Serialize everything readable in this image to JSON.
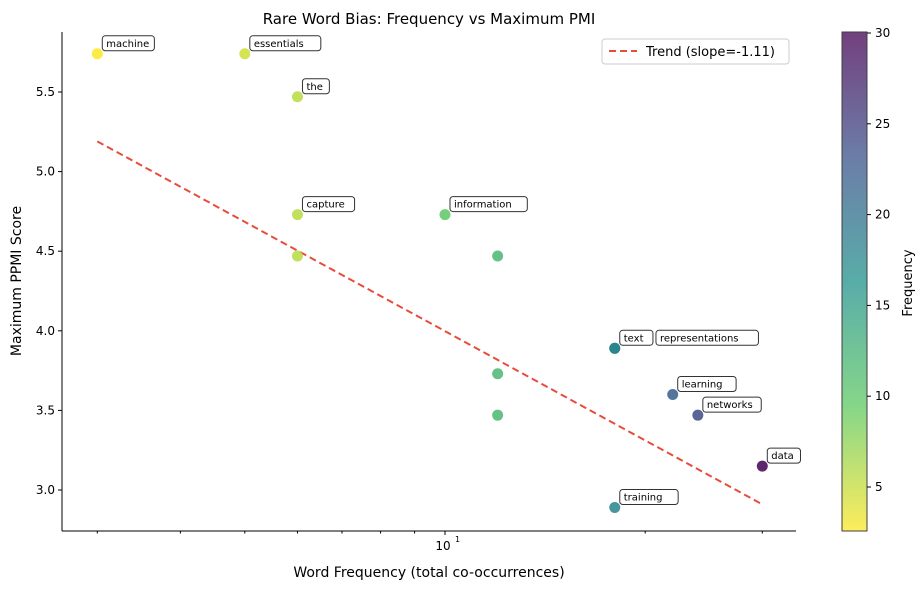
{
  "chart_data": {
    "type": "scatter",
    "title": "Rare Word Bias: Frequency vs Maximum PMI",
    "xlabel": "Word Frequency (total co-occurrences)",
    "ylabel": "Maximum PPMI Score",
    "xscale": "log",
    "xlim": [
      2.4,
      41
    ],
    "ylim": [
      2.75,
      5.88
    ],
    "x_ticks": [
      {
        "value": 10,
        "label": "10",
        "exp": "1"
      }
    ],
    "y_ticks": [
      3.0,
      3.5,
      4.0,
      4.5,
      5.0,
      5.5
    ],
    "y_tick_labels": [
      "3.0",
      "3.5",
      "4.0",
      "4.5",
      "5.0",
      "5.5"
    ],
    "grid": false,
    "points": [
      {
        "x": 3,
        "y": 5.74,
        "label": "machine"
      },
      {
        "x": 5,
        "y": 5.74,
        "label": "essentials"
      },
      {
        "x": 6,
        "y": 5.47,
        "label": "the"
      },
      {
        "x": 6,
        "y": 4.73,
        "label": "capture"
      },
      {
        "x": 6,
        "y": 4.47,
        "label": ""
      },
      {
        "x": 10,
        "y": 4.73,
        "label": "information"
      },
      {
        "x": 12,
        "y": 4.47,
        "label": ""
      },
      {
        "x": 12,
        "y": 3.73,
        "label": ""
      },
      {
        "x": 12,
        "y": 3.47,
        "label": ""
      },
      {
        "x": 18,
        "y": 3.89,
        "label": "representations"
      },
      {
        "x": 18,
        "y": 3.89,
        "label": "text"
      },
      {
        "x": 22,
        "y": 3.6,
        "label": "learning"
      },
      {
        "x": 24,
        "y": 3.47,
        "label": "networks"
      },
      {
        "x": 30,
        "y": 3.15,
        "label": "data"
      },
      {
        "x": 18,
        "y": 2.89,
        "label": "training"
      }
    ],
    "trend": {
      "name": "Trend (slope=-1.11)",
      "x": [
        3,
        30
      ],
      "y": [
        5.19,
        2.91
      ],
      "color": "#e74c3c"
    },
    "legend_placement": "top-right",
    "colorbar": {
      "label": "Frequency",
      "min": 3,
      "max": 30,
      "ticks": [
        5,
        10,
        15,
        20,
        25,
        30
      ],
      "colormap": "viridis_r"
    }
  }
}
